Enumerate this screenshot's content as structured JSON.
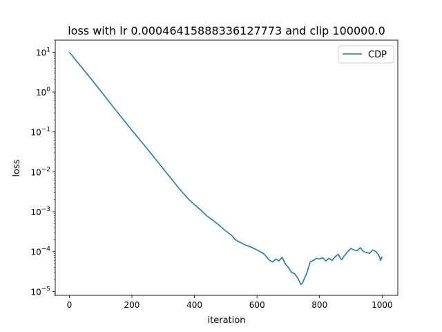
{
  "chart_data": {
    "type": "line",
    "title": "loss with lr 0.00046415888336127773 and clip 100000.0",
    "xlabel": "iteration",
    "ylabel": "loss",
    "yscale": "log",
    "xlim": [
      -45,
      1050
    ],
    "ylim": [
      8e-06,
      20
    ],
    "grid": false,
    "legend_position": "top-right",
    "x_ticks": [
      0,
      200,
      400,
      600,
      800,
      1000
    ],
    "x_tick_labels": [
      "0",
      "200",
      "400",
      "600",
      "800",
      "1000"
    ],
    "y_ticks": [
      1e-05,
      0.0001,
      0.001,
      0.01,
      0.1,
      1,
      10
    ],
    "y_tick_labels": [
      {
        "base": "10",
        "exp": "−5"
      },
      {
        "base": "10",
        "exp": "−4"
      },
      {
        "base": "10",
        "exp": "−3"
      },
      {
        "base": "10",
        "exp": "−2"
      },
      {
        "base": "10",
        "exp": "−1"
      },
      {
        "base": "10",
        "exp": "0"
      },
      {
        "base": "10",
        "exp": "1"
      }
    ],
    "series": [
      {
        "name": "CDP",
        "color": "#1f77b4",
        "x": [
          0,
          50,
          100,
          150,
          200,
          250,
          300,
          350,
          380,
          400,
          420,
          440,
          460,
          480,
          500,
          520,
          530,
          540,
          560,
          580,
          600,
          620,
          630,
          640,
          650,
          660,
          670,
          680,
          690,
          700,
          710,
          720,
          730,
          740,
          745,
          750,
          760,
          770,
          780,
          790,
          800,
          810,
          820,
          830,
          840,
          850,
          860,
          870,
          880,
          890,
          900,
          910,
          920,
          930,
          940,
          950,
          960,
          970,
          980,
          990,
          995,
          1000
        ],
        "y": [
          10,
          3.3,
          1.07,
          0.34,
          0.11,
          0.037,
          0.012,
          0.0039,
          0.0021,
          0.0015,
          0.0011,
          0.00078,
          0.0006,
          0.00045,
          0.00033,
          0.00025,
          0.0002,
          0.00018,
          0.00015,
          0.00013,
          0.00011,
          9e-05,
          7.5e-05,
          6e-05,
          5.5e-05,
          6.5e-05,
          5.8e-05,
          7.2e-05,
          5e-05,
          4e-05,
          3e-05,
          2.8e-05,
          2.2e-05,
          1.5e-05,
          1.6e-05,
          2e-05,
          3e-05,
          5.5e-05,
          6e-05,
          6.8e-05,
          6.5e-05,
          7e-05,
          5.8e-05,
          6.8e-05,
          6e-05,
          7.5e-05,
          8.5e-05,
          6.2e-05,
          8e-05,
          0.0001,
          0.00012,
          0.00011,
          0.000105,
          0.000125,
          0.0001,
          9.5e-05,
          9e-05,
          0.00011,
          0.0001,
          8e-05,
          6e-05,
          7.5e-05
        ]
      }
    ]
  }
}
